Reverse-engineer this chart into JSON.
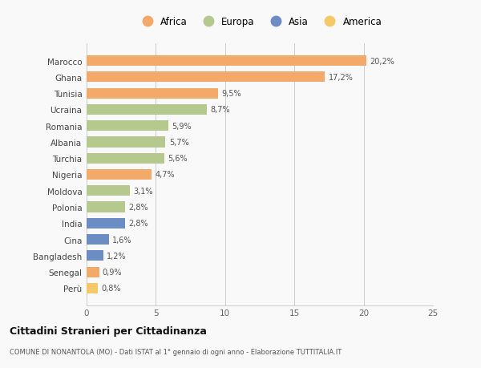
{
  "countries": [
    "Marocco",
    "Ghana",
    "Tunisia",
    "Ucraina",
    "Romania",
    "Albania",
    "Turchia",
    "Nigeria",
    "Moldova",
    "Polonia",
    "India",
    "Cina",
    "Bangladesh",
    "Senegal",
    "Perù"
  ],
  "values": [
    20.2,
    17.2,
    9.5,
    8.7,
    5.9,
    5.7,
    5.6,
    4.7,
    3.1,
    2.8,
    2.8,
    1.6,
    1.2,
    0.9,
    0.8
  ],
  "labels": [
    "20,2%",
    "17,2%",
    "9,5%",
    "8,7%",
    "5,9%",
    "5,7%",
    "5,6%",
    "4,7%",
    "3,1%",
    "2,8%",
    "2,8%",
    "1,6%",
    "1,2%",
    "0,9%",
    "0,8%"
  ],
  "continents": [
    "Africa",
    "Africa",
    "Africa",
    "Europa",
    "Europa",
    "Europa",
    "Europa",
    "Africa",
    "Europa",
    "Europa",
    "Asia",
    "Asia",
    "Asia",
    "Africa",
    "America"
  ],
  "colors": {
    "Africa": "#F2A96A",
    "Europa": "#B5C98E",
    "Asia": "#6B8DC4",
    "America": "#F5C96A"
  },
  "legend_order": [
    "Africa",
    "Europa",
    "Asia",
    "America"
  ],
  "xlim": [
    0,
    25
  ],
  "xticks": [
    0,
    5,
    10,
    15,
    20,
    25
  ],
  "title": "Cittadini Stranieri per Cittadinanza",
  "subtitle": "COMUNE DI NONANTOLA (MO) - Dati ISTAT al 1° gennaio di ogni anno - Elaborazione TUTTITALIA.IT",
  "background_color": "#f9f9f9",
  "grid_color": "#cccccc"
}
